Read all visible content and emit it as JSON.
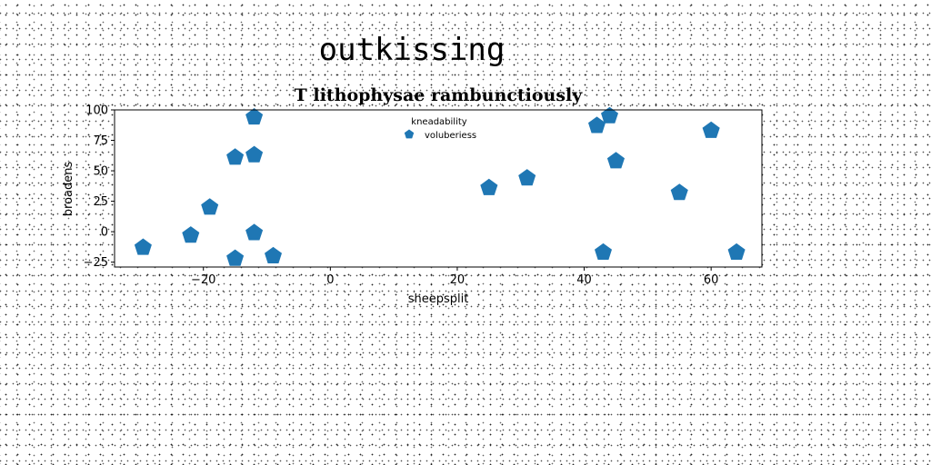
{
  "page": {
    "title": "outkissing"
  },
  "chart_data": {
    "type": "scatter",
    "title": "T lithophysae rambunctiously",
    "xlabel": "sheepsplit",
    "ylabel": "broadens",
    "xlim": [
      -34,
      68
    ],
    "ylim": [
      -29,
      100
    ],
    "xticks": [
      -20,
      0,
      20,
      40,
      60
    ],
    "yticks": [
      -25,
      0,
      25,
      50,
      75,
      100
    ],
    "tick_labels": {
      "x": [
        "−20",
        "0",
        "20",
        "40",
        "60"
      ],
      "y": [
        "−25",
        "0",
        "25",
        "50",
        "75",
        "100"
      ]
    },
    "grid": false,
    "marker": "pentagon",
    "color": "#1f77b4",
    "legend": {
      "placement": "upper-center",
      "title": "kneadability",
      "entries": [
        "voluberiess"
      ]
    },
    "series": [
      {
        "name": "voluberiess",
        "points": [
          [
            -29.5,
            -13
          ],
          [
            -22,
            -3
          ],
          [
            -19,
            20
          ],
          [
            -15,
            61
          ],
          [
            -15,
            -22
          ],
          [
            -12,
            94
          ],
          [
            -12,
            63
          ],
          [
            -12,
            -1
          ],
          [
            -9,
            -20
          ],
          [
            25,
            36
          ],
          [
            31,
            44
          ],
          [
            42,
            87
          ],
          [
            44,
            95
          ],
          [
            43,
            -17
          ],
          [
            45,
            58
          ],
          [
            55,
            32
          ],
          [
            60,
            83
          ],
          [
            64,
            -17
          ]
        ]
      }
    ]
  }
}
